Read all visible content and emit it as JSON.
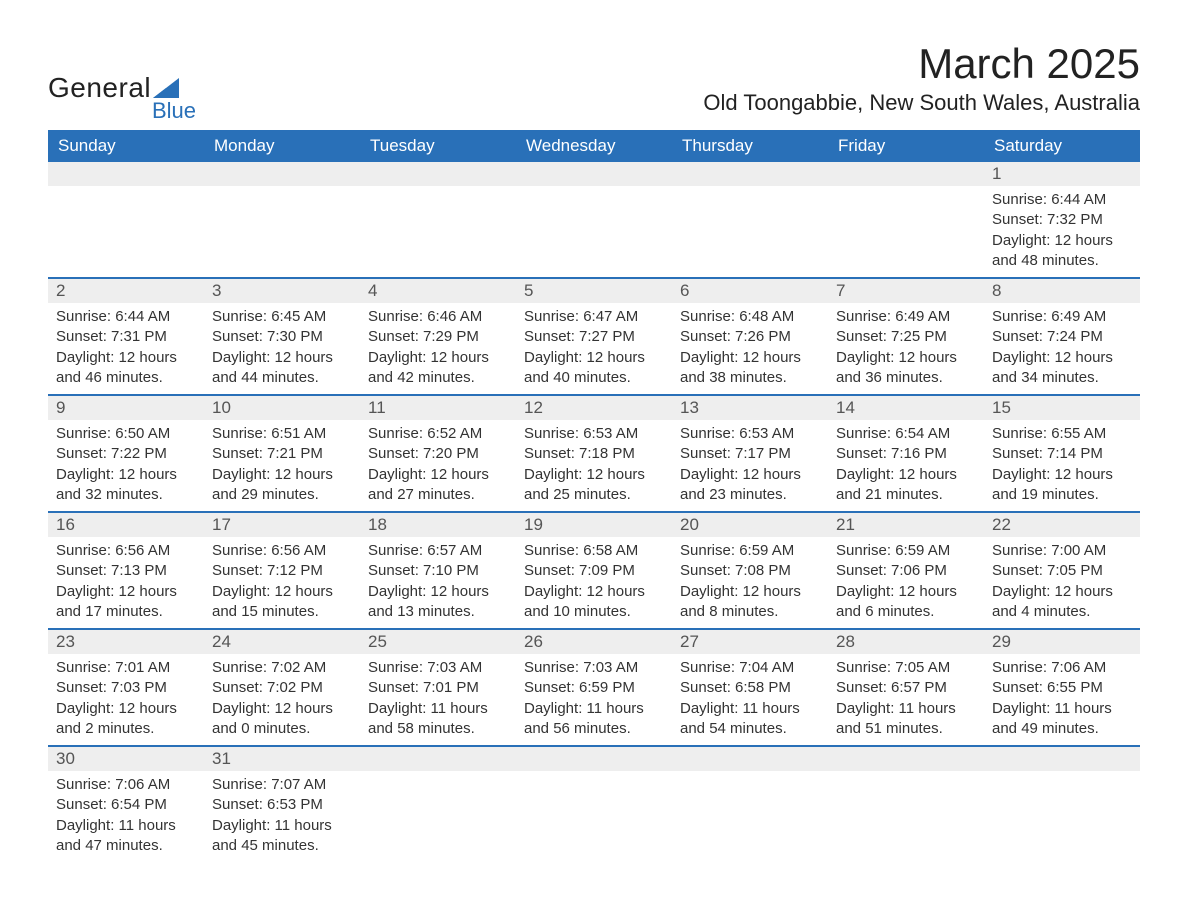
{
  "logo": {
    "main": "General",
    "sub": "Blue",
    "triangle_color": "#2970b8"
  },
  "title": "March 2025",
  "location": "Old Toongabbie, New South Wales, Australia",
  "colors": {
    "header_bg": "#2970b8",
    "header_text": "#ffffff",
    "daynum_bg": "#eeeeee",
    "row_border": "#2970b8",
    "body_text": "#333333"
  },
  "typography": {
    "title_fontsize": 42,
    "location_fontsize": 22,
    "header_fontsize": 17,
    "daynum_fontsize": 17,
    "cell_fontsize": 15
  },
  "day_headers": [
    "Sunday",
    "Monday",
    "Tuesday",
    "Wednesday",
    "Thursday",
    "Friday",
    "Saturday"
  ],
  "weeks": [
    [
      {
        "empty": true
      },
      {
        "empty": true
      },
      {
        "empty": true
      },
      {
        "empty": true
      },
      {
        "empty": true
      },
      {
        "empty": true
      },
      {
        "num": "1",
        "sunrise": "6:44 AM",
        "sunset": "7:32 PM",
        "daylight": "12 hours and 48 minutes."
      }
    ],
    [
      {
        "num": "2",
        "sunrise": "6:44 AM",
        "sunset": "7:31 PM",
        "daylight": "12 hours and 46 minutes."
      },
      {
        "num": "3",
        "sunrise": "6:45 AM",
        "sunset": "7:30 PM",
        "daylight": "12 hours and 44 minutes."
      },
      {
        "num": "4",
        "sunrise": "6:46 AM",
        "sunset": "7:29 PM",
        "daylight": "12 hours and 42 minutes."
      },
      {
        "num": "5",
        "sunrise": "6:47 AM",
        "sunset": "7:27 PM",
        "daylight": "12 hours and 40 minutes."
      },
      {
        "num": "6",
        "sunrise": "6:48 AM",
        "sunset": "7:26 PM",
        "daylight": "12 hours and 38 minutes."
      },
      {
        "num": "7",
        "sunrise": "6:49 AM",
        "sunset": "7:25 PM",
        "daylight": "12 hours and 36 minutes."
      },
      {
        "num": "8",
        "sunrise": "6:49 AM",
        "sunset": "7:24 PM",
        "daylight": "12 hours and 34 minutes."
      }
    ],
    [
      {
        "num": "9",
        "sunrise": "6:50 AM",
        "sunset": "7:22 PM",
        "daylight": "12 hours and 32 minutes."
      },
      {
        "num": "10",
        "sunrise": "6:51 AM",
        "sunset": "7:21 PM",
        "daylight": "12 hours and 29 minutes."
      },
      {
        "num": "11",
        "sunrise": "6:52 AM",
        "sunset": "7:20 PM",
        "daylight": "12 hours and 27 minutes."
      },
      {
        "num": "12",
        "sunrise": "6:53 AM",
        "sunset": "7:18 PM",
        "daylight": "12 hours and 25 minutes."
      },
      {
        "num": "13",
        "sunrise": "6:53 AM",
        "sunset": "7:17 PM",
        "daylight": "12 hours and 23 minutes."
      },
      {
        "num": "14",
        "sunrise": "6:54 AM",
        "sunset": "7:16 PM",
        "daylight": "12 hours and 21 minutes."
      },
      {
        "num": "15",
        "sunrise": "6:55 AM",
        "sunset": "7:14 PM",
        "daylight": "12 hours and 19 minutes."
      }
    ],
    [
      {
        "num": "16",
        "sunrise": "6:56 AM",
        "sunset": "7:13 PM",
        "daylight": "12 hours and 17 minutes."
      },
      {
        "num": "17",
        "sunrise": "6:56 AM",
        "sunset": "7:12 PM",
        "daylight": "12 hours and 15 minutes."
      },
      {
        "num": "18",
        "sunrise": "6:57 AM",
        "sunset": "7:10 PM",
        "daylight": "12 hours and 13 minutes."
      },
      {
        "num": "19",
        "sunrise": "6:58 AM",
        "sunset": "7:09 PM",
        "daylight": "12 hours and 10 minutes."
      },
      {
        "num": "20",
        "sunrise": "6:59 AM",
        "sunset": "7:08 PM",
        "daylight": "12 hours and 8 minutes."
      },
      {
        "num": "21",
        "sunrise": "6:59 AM",
        "sunset": "7:06 PM",
        "daylight": "12 hours and 6 minutes."
      },
      {
        "num": "22",
        "sunrise": "7:00 AM",
        "sunset": "7:05 PM",
        "daylight": "12 hours and 4 minutes."
      }
    ],
    [
      {
        "num": "23",
        "sunrise": "7:01 AM",
        "sunset": "7:03 PM",
        "daylight": "12 hours and 2 minutes."
      },
      {
        "num": "24",
        "sunrise": "7:02 AM",
        "sunset": "7:02 PM",
        "daylight": "12 hours and 0 minutes."
      },
      {
        "num": "25",
        "sunrise": "7:03 AM",
        "sunset": "7:01 PM",
        "daylight": "11 hours and 58 minutes."
      },
      {
        "num": "26",
        "sunrise": "7:03 AM",
        "sunset": "6:59 PM",
        "daylight": "11 hours and 56 minutes."
      },
      {
        "num": "27",
        "sunrise": "7:04 AM",
        "sunset": "6:58 PM",
        "daylight": "11 hours and 54 minutes."
      },
      {
        "num": "28",
        "sunrise": "7:05 AM",
        "sunset": "6:57 PM",
        "daylight": "11 hours and 51 minutes."
      },
      {
        "num": "29",
        "sunrise": "7:06 AM",
        "sunset": "6:55 PM",
        "daylight": "11 hours and 49 minutes."
      }
    ],
    [
      {
        "num": "30",
        "sunrise": "7:06 AM",
        "sunset": "6:54 PM",
        "daylight": "11 hours and 47 minutes."
      },
      {
        "num": "31",
        "sunrise": "7:07 AM",
        "sunset": "6:53 PM",
        "daylight": "11 hours and 45 minutes."
      },
      {
        "empty": true
      },
      {
        "empty": true
      },
      {
        "empty": true
      },
      {
        "empty": true
      },
      {
        "empty": true
      }
    ]
  ],
  "labels": {
    "sunrise": "Sunrise:",
    "sunset": "Sunset:",
    "daylight": "Daylight:"
  }
}
